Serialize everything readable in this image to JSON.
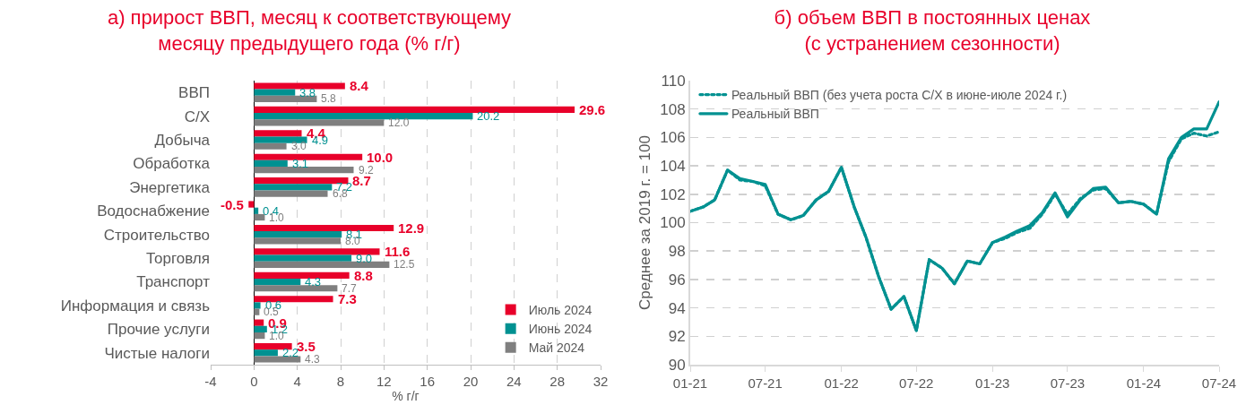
{
  "chart_data": [
    {
      "type": "bar",
      "orientation": "horizontal",
      "title": "а) прирост ВВП, месяц к соответствующему\nмесяцу предыдущего года (% г/г)",
      "xlabel": "% г/г",
      "categories": [
        "ВВП",
        "С/Х",
        "Добыча",
        "Обработка",
        "Энергетика",
        "Водоснабжение",
        "Строительство",
        "Торговля",
        "Транспорт",
        "Информация и связь",
        "Прочие услуги",
        "Чистые налоги"
      ],
      "series": [
        {
          "name": "Июль 2024",
          "color": "#e8002a",
          "values": [
            8.4,
            29.6,
            4.4,
            10.0,
            8.7,
            -0.5,
            12.9,
            11.6,
            8.8,
            7.3,
            0.9,
            3.5
          ],
          "value_labels": [
            "8.4",
            "29.6",
            "4.4",
            "10.0",
            "8.7",
            "-0.5",
            "12.9",
            "11.6",
            "8.8",
            "7.3",
            "0.9",
            "3.5"
          ]
        },
        {
          "name": "Июнь 2024",
          "color": "#009191",
          "values": [
            3.8,
            20.2,
            4.9,
            3.1,
            7.2,
            0.4,
            8.1,
            9.0,
            4.3,
            0.6,
            1.2,
            2.2
          ],
          "value_labels": [
            "3.8",
            "20.2",
            "4.9",
            "3.1",
            "7.2",
            "0.4",
            "8.1",
            "9.0",
            "4.3",
            "0.6",
            "1.2",
            "2.2"
          ]
        },
        {
          "name": "Май 2024",
          "color": "#7f7f7f",
          "values": [
            5.8,
            12.0,
            3.0,
            9.2,
            6.8,
            1.0,
            8.0,
            12.5,
            7.7,
            0.5,
            1.0,
            4.3
          ],
          "value_labels": [
            "5.8",
            "12.0",
            "3.0",
            "9.2",
            "6.8",
            "1.0",
            "8.0",
            "12.5",
            "7.7",
            "0.5",
            "1.0",
            "4.3"
          ]
        }
      ],
      "xlim": [
        -4,
        32
      ],
      "xticks": [
        -4,
        0,
        4,
        8,
        12,
        16,
        20,
        24,
        28,
        32
      ],
      "grid": "x",
      "legend": "bottom right"
    },
    {
      "type": "line",
      "title": "б) объем ВВП в постоянных ценах\n(с устранением сезонности)",
      "ylabel": "Среднее за 2019 г. = 100",
      "x": [
        "2021-01",
        "2021-02",
        "2021-03",
        "2021-04",
        "2021-05",
        "2021-06",
        "2021-07",
        "2021-08",
        "2021-09",
        "2021-10",
        "2021-11",
        "2021-12",
        "2022-01",
        "2022-02",
        "2022-03",
        "2022-04",
        "2022-05",
        "2022-06",
        "2022-07",
        "2022-08",
        "2022-09",
        "2022-10",
        "2022-11",
        "2022-12",
        "2023-01",
        "2023-02",
        "2023-03",
        "2023-04",
        "2023-05",
        "2023-06",
        "2023-07",
        "2023-08",
        "2023-09",
        "2023-10",
        "2023-11",
        "2023-12",
        "2024-01",
        "2024-02",
        "2024-03",
        "2024-04",
        "2024-05",
        "2024-06",
        "2024-07"
      ],
      "series": [
        {
          "name": "Реальный ВВП (без учета роста С/Х в июне-июле 2024 г.)",
          "color": "#009191",
          "line_style": "dotted",
          "values": [
            100.8,
            101.1,
            101.6,
            103.7,
            103.0,
            102.9,
            102.6,
            100.6,
            100.2,
            100.5,
            101.6,
            102.2,
            103.9,
            101.1,
            99.0,
            96.2,
            93.9,
            94.8,
            92.4,
            97.4,
            96.8,
            95.7,
            97.3,
            97.1,
            98.6,
            98.9,
            99.3,
            99.6,
            100.6,
            102.0,
            100.6,
            101.7,
            102.3,
            102.4,
            101.4,
            101.5,
            101.3,
            100.6,
            104.3,
            105.9,
            106.3,
            106.1,
            106.4
          ]
        },
        {
          "name": "Реальный ВВП",
          "color": "#009191",
          "line_style": "solid",
          "values": [
            100.8,
            101.1,
            101.6,
            103.7,
            103.1,
            102.9,
            102.7,
            100.6,
            100.2,
            100.5,
            101.6,
            102.2,
            103.9,
            101.1,
            99.0,
            96.2,
            93.9,
            94.8,
            92.4,
            97.4,
            96.8,
            95.7,
            97.3,
            97.1,
            98.6,
            99.0,
            99.4,
            99.8,
            100.7,
            102.1,
            100.4,
            101.6,
            102.4,
            102.5,
            101.4,
            101.5,
            101.3,
            100.6,
            104.5,
            106.0,
            106.6,
            106.6,
            108.5
          ]
        }
      ],
      "xlim": [
        "2021-01",
        "2024-07"
      ],
      "xticks": [
        {
          "value": "2021-01",
          "label": "01-21"
        },
        {
          "value": "2021-07",
          "label": "07-21"
        },
        {
          "value": "2022-01",
          "label": "01-22"
        },
        {
          "value": "2022-07",
          "label": "07-22"
        },
        {
          "value": "2023-01",
          "label": "01-23"
        },
        {
          "value": "2023-07",
          "label": "07-23"
        },
        {
          "value": "2024-01",
          "label": "01-24"
        },
        {
          "value": "2024-07",
          "label": "07-24"
        }
      ],
      "ylim": [
        90,
        110
      ],
      "yticks": [
        90,
        92,
        94,
        96,
        98,
        100,
        102,
        104,
        106,
        108,
        110
      ],
      "grid": "y",
      "legend": "top left",
      "marker": "none"
    }
  ]
}
